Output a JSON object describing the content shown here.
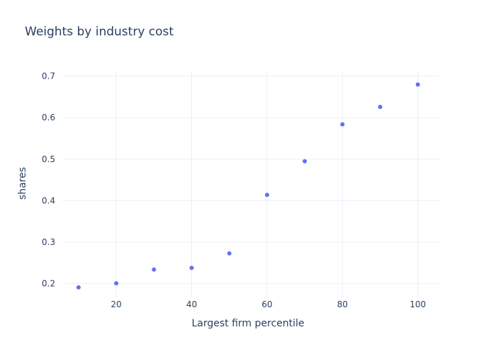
{
  "chart_data": {
    "type": "scatter",
    "title": "Weights by industry cost",
    "xlabel": "Largest firm percentile",
    "ylabel": "shares",
    "x": [
      10,
      20,
      30,
      40,
      50,
      60,
      70,
      80,
      90,
      100
    ],
    "y": [
      0.191,
      0.201,
      0.234,
      0.238,
      0.273,
      0.414,
      0.495,
      0.584,
      0.626,
      0.68
    ],
    "xlim": [
      5.7,
      105.7
    ],
    "ylim": [
      0.167,
      0.713
    ],
    "xticks": [
      20,
      40,
      60,
      80,
      100
    ],
    "xtick_labels": [
      "20",
      "40",
      "60",
      "80",
      "100"
    ],
    "yticks": [
      0.2,
      0.3,
      0.4,
      0.5,
      0.6,
      0.7
    ],
    "ytick_labels": [
      "0.2",
      "0.3",
      "0.4",
      "0.5",
      "0.6",
      "0.7"
    ],
    "grid": true,
    "legend": "none",
    "marker_color": "#636efa"
  }
}
